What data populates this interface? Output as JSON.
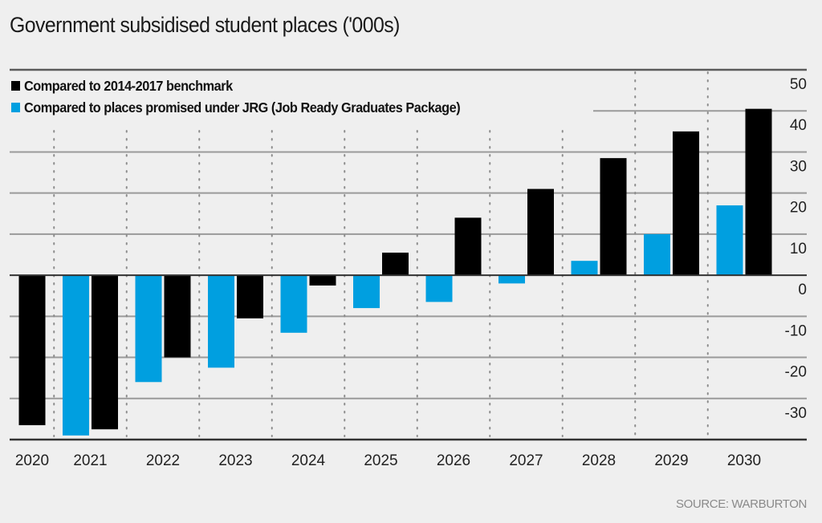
{
  "title": "Government subsidised student places ('000s)",
  "source": "SOURCE: WARBURTON",
  "legend": [
    {
      "label": "Compared to 2014-2017 benchmark",
      "color": "#000000"
    },
    {
      "label": "Compared to places promised under JRG (Job Ready Graduates Package)",
      "color": "#009fe0"
    }
  ],
  "chart_data": {
    "type": "bar",
    "title": "Government subsidised student places ('000s)",
    "xlabel": "",
    "ylabel": "",
    "ylim": [
      -40,
      50
    ],
    "yticks": [
      50,
      40,
      30,
      20,
      10,
      0,
      -10,
      -20,
      -30
    ],
    "y_axis_position": "right",
    "grid": true,
    "legend_position": "top-left",
    "categories": [
      "2020",
      "2021",
      "2022",
      "2023",
      "2024",
      "2025",
      "2026",
      "2027",
      "2028",
      "2029",
      "2030"
    ],
    "series": [
      {
        "name": "Compared to places promised under JRG (Job Ready Graduates Package)",
        "color": "#009fe0",
        "values": [
          null,
          -39,
          -26,
          -22.5,
          -14,
          -8,
          -6.5,
          -2,
          3.5,
          10,
          17
        ]
      },
      {
        "name": "Compared to 2014-2017 benchmark",
        "color": "#000000",
        "values": [
          -36.5,
          -37.5,
          -20,
          -10.5,
          -2.5,
          5.5,
          14,
          21,
          28.5,
          35,
          40.5
        ]
      }
    ]
  }
}
